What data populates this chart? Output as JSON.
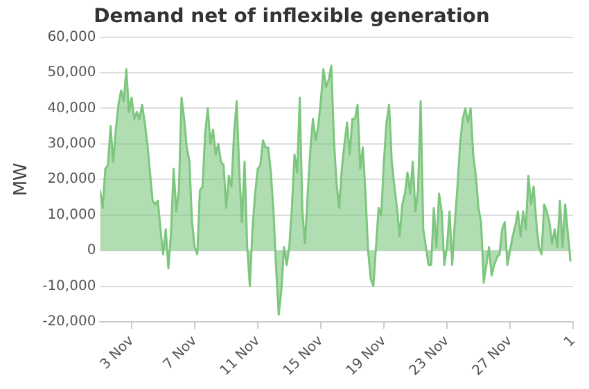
{
  "chart_data": {
    "type": "area",
    "title": "Demand net of inflexible generation",
    "ylabel": "MW",
    "color": "#7dc67e",
    "x": [
      "--11-01T00:00",
      "--11-01T04:00",
      "--11-01T08:00",
      "--11-01T12:00",
      "--11-01T16:00",
      "--11-01T20:00",
      "--11-02T00:00",
      "--11-02T04:00",
      "--11-02T08:00",
      "--11-02T12:00",
      "--11-02T16:00",
      "--11-02T20:00",
      "--11-03T00:00",
      "--11-03T04:00",
      "--11-03T08:00",
      "--11-03T12:00",
      "--11-03T16:00",
      "--11-03T20:00",
      "--11-04T00:00",
      "--11-04T04:00",
      "--11-04T08:00",
      "--11-04T12:00",
      "--11-04T16:00",
      "--11-04T20:00",
      "--11-05T00:00",
      "--11-05T04:00",
      "--11-05T08:00",
      "--11-05T12:00",
      "--11-05T16:00",
      "--11-05T20:00",
      "--11-06T00:00",
      "--11-06T04:00",
      "--11-06T08:00",
      "--11-06T12:00",
      "--11-06T16:00",
      "--11-06T20:00",
      "--11-07T00:00",
      "--11-07T04:00",
      "--11-07T08:00",
      "--11-07T12:00",
      "--11-07T16:00",
      "--11-07T20:00",
      "--11-08T00:00",
      "--11-08T04:00",
      "--11-08T08:00",
      "--11-08T12:00",
      "--11-08T16:00",
      "--11-08T20:00",
      "--11-09T00:00",
      "--11-09T04:00",
      "--11-09T08:00",
      "--11-09T12:00",
      "--11-09T16:00",
      "--11-09T20:00",
      "--11-10T00:00",
      "--11-10T04:00",
      "--11-10T08:00",
      "--11-10T12:00",
      "--11-10T16:00",
      "--11-10T20:00",
      "--11-11T00:00",
      "--11-11T04:00",
      "--11-11T08:00",
      "--11-11T12:00",
      "--11-11T16:00",
      "--11-11T20:00",
      "--11-12T00:00",
      "--11-12T04:00",
      "--11-12T08:00",
      "--11-12T12:00",
      "--11-12T16:00",
      "--11-12T20:00",
      "--11-13T00:00",
      "--11-13T04:00",
      "--11-13T08:00",
      "--11-13T12:00",
      "--11-13T16:00",
      "--11-13T20:00",
      "--11-14T00:00",
      "--11-14T04:00",
      "--11-14T08:00",
      "--11-14T12:00",
      "--11-14T16:00",
      "--11-14T20:00",
      "--11-15T00:00",
      "--11-15T04:00",
      "--11-15T08:00",
      "--11-15T12:00",
      "--11-15T16:00",
      "--11-15T20:00",
      "--11-16T00:00",
      "--11-16T04:00",
      "--11-16T08:00",
      "--11-16T12:00",
      "--11-16T16:00",
      "--11-16T20:00",
      "--11-17T00:00",
      "--11-17T04:00",
      "--11-17T08:00",
      "--11-17T12:00",
      "--11-17T16:00",
      "--11-17T20:00",
      "--11-18T00:00",
      "--11-18T04:00",
      "--11-18T08:00",
      "--11-18T12:00",
      "--11-18T16:00",
      "--11-18T20:00",
      "--11-19T00:00",
      "--11-19T04:00",
      "--11-19T08:00",
      "--11-19T12:00",
      "--11-19T16:00",
      "--11-19T20:00",
      "--11-20T00:00",
      "--11-20T04:00",
      "--11-20T08:00",
      "--11-20T12:00",
      "--11-20T16:00",
      "--11-20T20:00",
      "--11-21T00:00",
      "--11-21T04:00",
      "--11-21T08:00",
      "--11-21T12:00",
      "--11-21T16:00",
      "--11-21T20:00",
      "--11-22T00:00",
      "--11-22T04:00",
      "--11-22T08:00",
      "--11-22T12:00",
      "--11-22T16:00",
      "--11-22T20:00",
      "--11-23T00:00",
      "--11-23T04:00",
      "--11-23T08:00",
      "--11-23T12:00",
      "--11-23T16:00",
      "--11-23T20:00",
      "--11-24T00:00",
      "--11-24T04:00",
      "--11-24T08:00",
      "--11-24T12:00",
      "--11-24T16:00",
      "--11-24T20:00",
      "--11-25T00:00",
      "--11-25T04:00",
      "--11-25T08:00",
      "--11-25T12:00",
      "--11-25T16:00",
      "--11-25T20:00",
      "--11-26T00:00",
      "--11-26T04:00",
      "--11-26T08:00",
      "--11-26T12:00",
      "--11-26T16:00",
      "--11-26T20:00",
      "--11-27T00:00",
      "--11-27T04:00",
      "--11-27T08:00",
      "--11-27T12:00",
      "--11-27T16:00",
      "--11-27T20:00",
      "--11-28T00:00",
      "--11-28T04:00",
      "--11-28T08:00",
      "--11-28T12:00",
      "--11-28T16:00",
      "--11-28T20:00",
      "--11-29T00:00",
      "--11-29T04:00",
      "--11-29T08:00",
      "--11-29T12:00",
      "--11-29T16:00",
      "--11-29T20:00",
      "--11-30T00:00",
      "--11-30T04:00",
      "--11-30T08:00",
      "--11-30T12:00",
      "--11-30T16:00",
      "--11-30T20:00"
    ],
    "values": [
      17000,
      12000,
      23000,
      24000,
      35000,
      25000,
      34000,
      41000,
      45000,
      42000,
      51000,
      39000,
      43000,
      37000,
      39000,
      37000,
      41000,
      36000,
      30000,
      22000,
      14000,
      13000,
      14000,
      6000,
      -1000,
      6000,
      -5000,
      5000,
      23000,
      11000,
      17000,
      43000,
      37000,
      29000,
      25000,
      8000,
      1000,
      -1000,
      17000,
      18000,
      33000,
      40000,
      30000,
      34000,
      27000,
      30000,
      25000,
      24000,
      12000,
      21000,
      18000,
      33000,
      42000,
      22000,
      8000,
      25000,
      1000,
      -10000,
      6000,
      16000,
      23000,
      24000,
      31000,
      29000,
      29000,
      22000,
      11000,
      -5000,
      -18000,
      -11000,
      1000,
      -4000,
      1000,
      12000,
      27000,
      22000,
      43000,
      11000,
      2000,
      16000,
      28000,
      37000,
      31000,
      35000,
      42000,
      51000,
      46000,
      48000,
      52000,
      31000,
      19000,
      12000,
      23000,
      30000,
      36000,
      27000,
      37000,
      37000,
      41000,
      23000,
      29000,
      16000,
      0,
      -8000,
      -10000,
      1000,
      12000,
      10000,
      25000,
      36000,
      41000,
      25000,
      18000,
      12000,
      4000,
      13000,
      16000,
      22000,
      16000,
      25000,
      11000,
      17000,
      42000,
      6000,
      1000,
      -4000,
      -4000,
      12000,
      1000,
      16000,
      11000,
      -4000,
      1000,
      11000,
      -4000,
      8000,
      18000,
      30000,
      37000,
      40000,
      36000,
      40000,
      27000,
      21000,
      12000,
      8000,
      -9000,
      -4000,
      1000,
      -7000,
      -4000,
      -2000,
      -1000,
      6000,
      8000,
      -4000,
      0,
      4000,
      7000,
      11000,
      4000,
      11000,
      6000,
      21000,
      13000,
      18000,
      8000,
      1000,
      -1000,
      13000,
      11000,
      8000,
      2000,
      6000,
      1000,
      14000,
      1000,
      13000,
      5000,
      -3000
    ],
    "xlim": [
      "--11-01",
      "--12-01"
    ],
    "xticks": [
      {
        "value": "--11-03",
        "label": "3 Nov"
      },
      {
        "value": "--11-07",
        "label": "7 Nov"
      },
      {
        "value": "--11-11",
        "label": "11 Nov"
      },
      {
        "value": "--11-15",
        "label": "15 Nov"
      },
      {
        "value": "--11-19",
        "label": "19 Nov"
      },
      {
        "value": "--11-23",
        "label": "23 Nov"
      },
      {
        "value": "--11-27",
        "label": "27 Nov"
      },
      {
        "value": "--12-01",
        "label": "1"
      }
    ],
    "ylim": [
      -20000,
      60000
    ],
    "yticks": [
      {
        "value": -20000,
        "label": "-20,000"
      },
      {
        "value": -10000,
        "label": "-10,000"
      },
      {
        "value": 0,
        "label": "0"
      },
      {
        "value": 10000,
        "label": "10,000"
      },
      {
        "value": 20000,
        "label": "20,000"
      },
      {
        "value": 30000,
        "label": "30,000"
      },
      {
        "value": 40000,
        "label": "40,000"
      },
      {
        "value": 50000,
        "label": "50,000"
      },
      {
        "value": 60000,
        "label": "60,000"
      }
    ],
    "grid": "y"
  }
}
